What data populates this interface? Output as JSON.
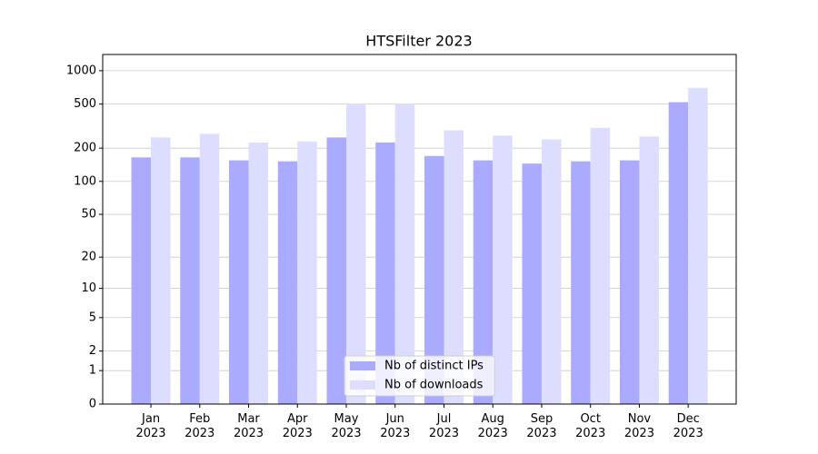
{
  "chart_data": {
    "type": "bar",
    "title": "HTSFilter 2023",
    "categories": [
      "Jan 2023",
      "Feb 2023",
      "Mar 2023",
      "Apr 2023",
      "May 2023",
      "Jun 2023",
      "Jul 2023",
      "Aug 2023",
      "Sep 2023",
      "Oct 2023",
      "Nov 2023",
      "Dec 2023"
    ],
    "series": [
      {
        "name": "Nb of distinct IPs",
        "color": "#aaaaff",
        "values": [
          165,
          165,
          155,
          152,
          250,
          225,
          170,
          155,
          145,
          152,
          155,
          520
        ]
      },
      {
        "name": "Nb of downloads",
        "color": "#ddddff",
        "values": [
          250,
          270,
          225,
          230,
          500,
          500,
          290,
          260,
          240,
          305,
          255,
          700
        ]
      }
    ],
    "yscale": "log1p",
    "ylim": [
      0,
      1400
    ],
    "yticks": [
      0,
      1,
      2,
      5,
      10,
      20,
      50,
      100,
      200,
      500,
      1000
    ],
    "grid": true,
    "legend": "lower center"
  }
}
